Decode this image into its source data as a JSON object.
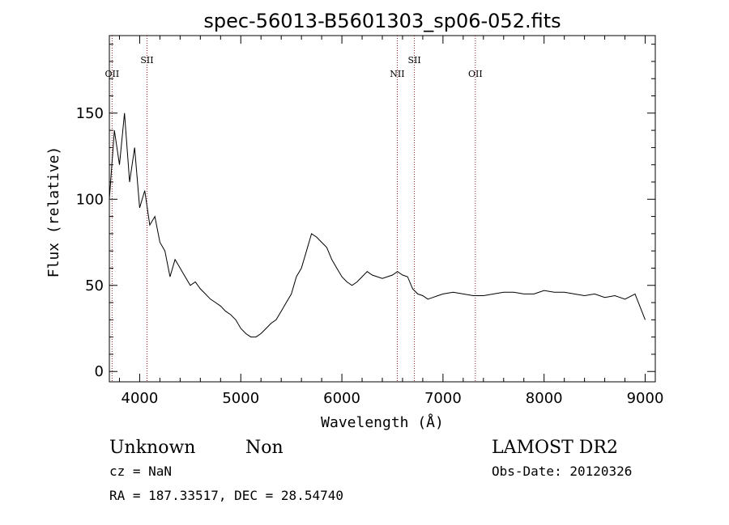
{
  "chart_data": {
    "type": "line",
    "title": "spec-56013-B5601303_sp06-052.fits",
    "xlabel": "Wavelength (Å)",
    "ylabel": "Flux (relative)",
    "xlim": [
      3700,
      9100
    ],
    "ylim": [
      -6,
      195
    ],
    "x_ticks": [
      4000,
      5000,
      6000,
      7000,
      8000,
      9000
    ],
    "y_ticks": [
      0,
      50,
      100,
      150
    ],
    "grid": false,
    "line_color": "#000000",
    "marker_color": "#8b1a1a",
    "series": [
      {
        "x": [
          3700,
          3750,
          3800,
          3850,
          3900,
          3950,
          4000,
          4050,
          4100,
          4150,
          4200,
          4250,
          4300,
          4350,
          4400,
          4450,
          4500,
          4550,
          4600,
          4650,
          4700,
          4750,
          4800,
          4850,
          4900,
          4950,
          5000,
          5050,
          5100,
          5150,
          5200,
          5250,
          5300,
          5350,
          5400,
          5450,
          5500,
          5550,
          5600,
          5650,
          5700,
          5750,
          5800,
          5850,
          5900,
          5950,
          6000,
          6050,
          6100,
          6150,
          6200,
          6250,
          6300,
          6350,
          6400,
          6450,
          6500,
          6550,
          6600,
          6650,
          6700,
          6750,
          6800,
          6850,
          6900,
          6950,
          7000,
          7100,
          7200,
          7300,
          7400,
          7500,
          7600,
          7700,
          7800,
          7900,
          8000,
          8100,
          8200,
          8300,
          8400,
          8500,
          8600,
          8700,
          8800,
          8900,
          9000
        ],
        "values": [
          100,
          140,
          120,
          150,
          110,
          130,
          95,
          105,
          85,
          90,
          75,
          70,
          55,
          65,
          60,
          55,
          50,
          52,
          48,
          45,
          42,
          40,
          38,
          35,
          33,
          30,
          25,
          22,
          20,
          20,
          22,
          25,
          28,
          30,
          35,
          40,
          45,
          55,
          60,
          70,
          80,
          78,
          75,
          72,
          65,
          60,
          55,
          52,
          50,
          52,
          55,
          58,
          56,
          55,
          54,
          55,
          56,
          58,
          56,
          55,
          48,
          45,
          44,
          42,
          43,
          44,
          45,
          46,
          45,
          44,
          44,
          45,
          46,
          46,
          45,
          45,
          47,
          46,
          46,
          45,
          44,
          45,
          43,
          44,
          42,
          45,
          30
        ]
      }
    ],
    "emission_lines": [
      {
        "label": "OII",
        "wavelength": 3727
      },
      {
        "label": "SII",
        "wavelength": 4072
      },
      {
        "label": "NII",
        "wavelength": 6548
      },
      {
        "label": "SII",
        "wavelength": 6717
      },
      {
        "label": "OII",
        "wavelength": 7320
      }
    ]
  },
  "info": {
    "class": "Unknown",
    "subclass": "Non",
    "survey": "LAMOST DR2",
    "cz": "cz = NaN",
    "obs_date": "Obs-Date: 20120326",
    "radec": "RA = 187.33517, DEC =  28.54740"
  }
}
